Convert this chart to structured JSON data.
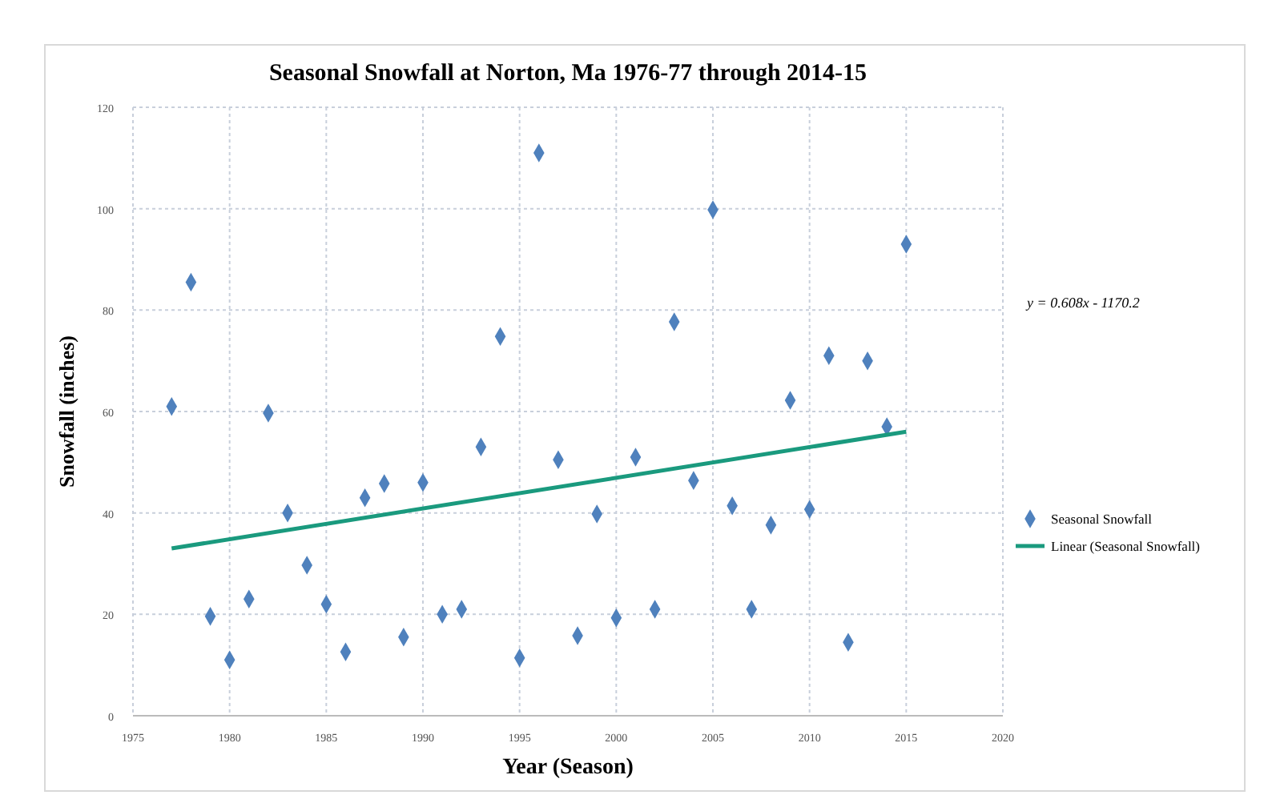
{
  "chart_data": {
    "type": "scatter",
    "title": "Seasonal Snowfall at Norton, Ma 1976-77 through  2014-15",
    "xlabel": "Year (Season)",
    "ylabel": "Snowfall (inches)",
    "x": [
      1977,
      1978,
      1979,
      1980,
      1981,
      1982,
      1983,
      1984,
      1985,
      1986,
      1987,
      1988,
      1989,
      1990,
      1991,
      1992,
      1993,
      1994,
      1995,
      1996,
      1997,
      1998,
      1999,
      2000,
      2001,
      2002,
      2003,
      2004,
      2005,
      2006,
      2007,
      2008,
      2009,
      2010,
      2011,
      2012,
      2013,
      2014,
      2015
    ],
    "series": [
      {
        "name": "Seasonal Snowfall",
        "marker": "diamond",
        "color": "#4f81bd",
        "values": [
          61,
          85.5,
          19.6,
          11,
          23,
          59.7,
          40,
          29.7,
          22,
          12.6,
          43,
          45.8,
          15.5,
          46,
          20,
          21,
          53,
          74.8,
          11.4,
          111,
          50.5,
          15.8,
          39.8,
          19.3,
          51,
          21,
          77.7,
          46.4,
          99.8,
          41.4,
          21,
          37.6,
          62.2,
          40.7,
          71,
          14.5,
          70,
          57,
          93
        ]
      },
      {
        "name": "Linear (Seasonal Snowfall)",
        "type": "line",
        "marker": "none",
        "color": "#1a9a7e",
        "x": [
          1977,
          2015
        ],
        "values": [
          33,
          56
        ]
      }
    ],
    "xlim": [
      1975,
      2020
    ],
    "xticks": [
      1975,
      1980,
      1985,
      1990,
      1995,
      2000,
      2005,
      2010,
      2015,
      2020
    ],
    "ylim": [
      0,
      120
    ],
    "yticks": [
      0,
      20,
      40,
      60,
      80,
      100,
      120
    ],
    "grid": true,
    "legend": "right",
    "annotations": [
      "y = 0.608x - 1170.2"
    ]
  }
}
